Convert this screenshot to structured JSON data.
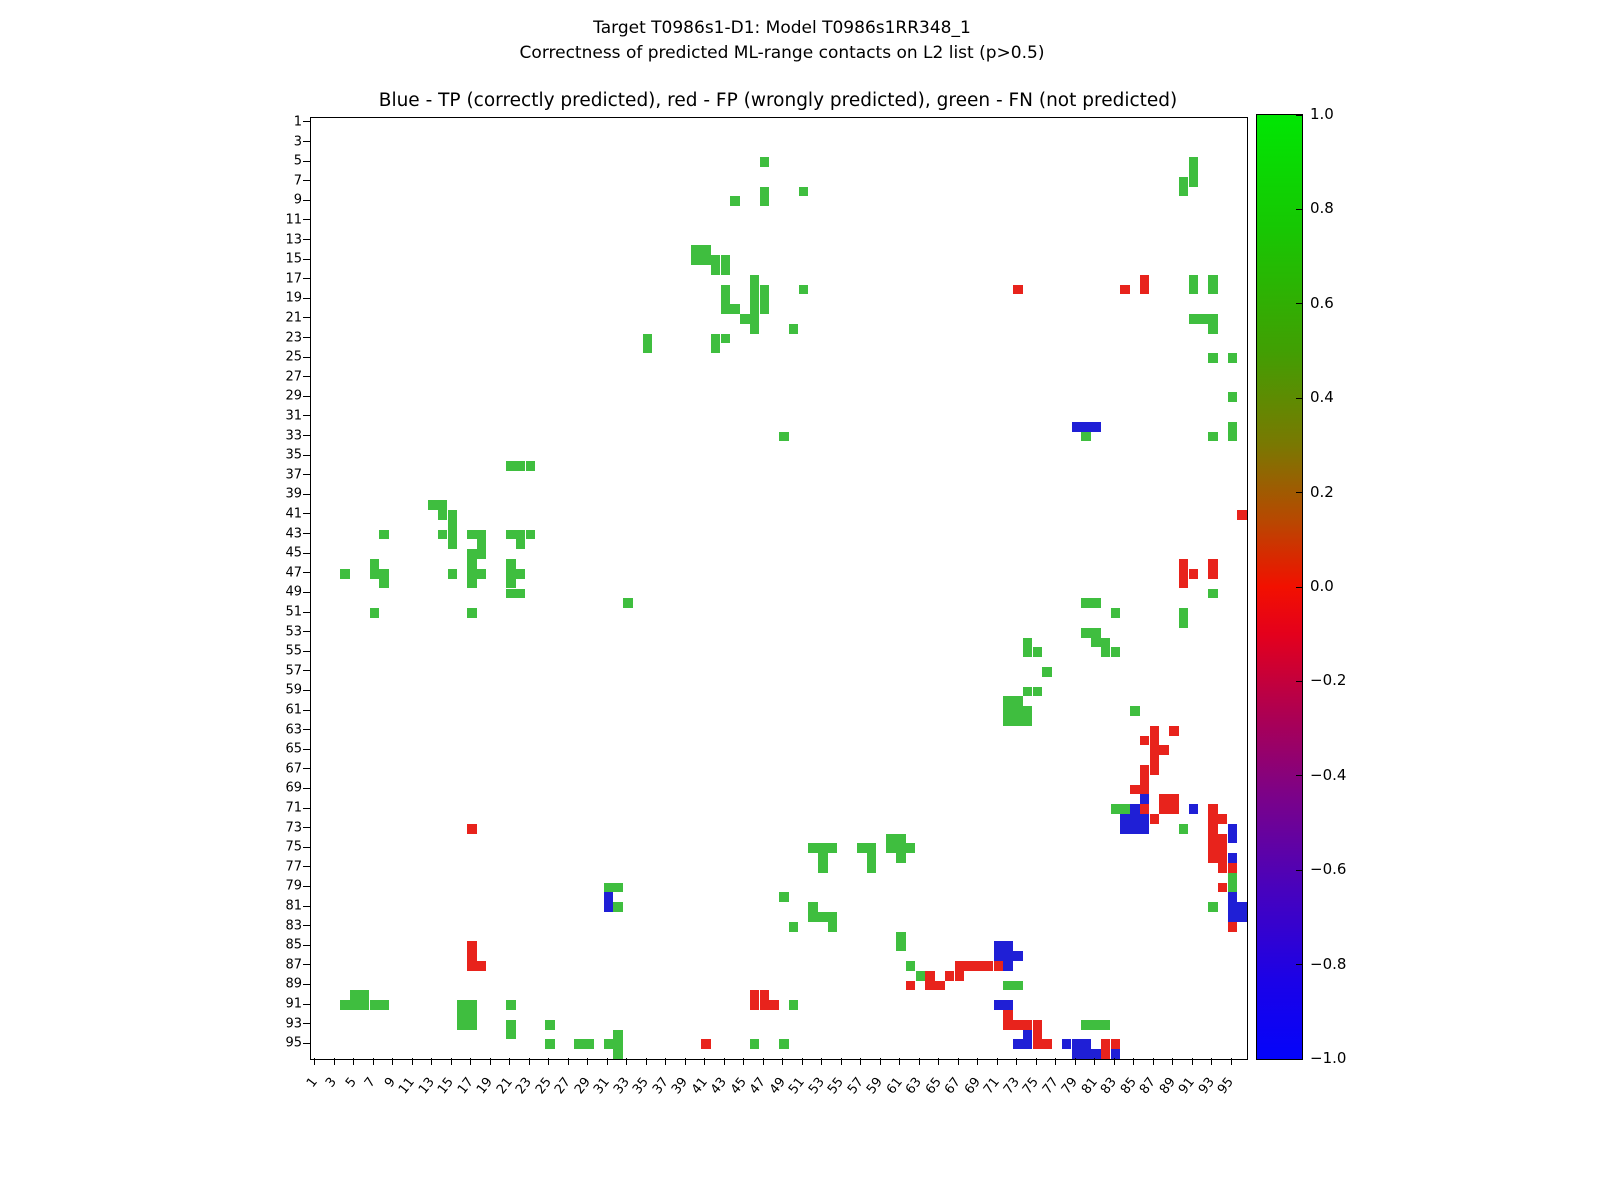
{
  "figure": {
    "suptitle_line1": "Target T0986s1-D1: Model T0986s1RR348_1",
    "suptitle_line2": "Correctness of predicted ML-range contacts on L2 list (p>0.5)",
    "axes_title": "Blue - TP (correctly predicted), red - FP (wrongly predicted), green - FN (not predicted)"
  },
  "chart_data": {
    "type": "heatmap",
    "title": "Correctness of predicted ML-range contacts on L2 list (p>0.5)",
    "subtitle": "Target T0986s1-D1: Model T0986s1RR348_1",
    "grid_size": 96,
    "x_tick_labels": [
      "1",
      "3",
      "5",
      "7",
      "9",
      "11",
      "13",
      "15",
      "17",
      "19",
      "21",
      "23",
      "25",
      "27",
      "29",
      "31",
      "33",
      "35",
      "37",
      "39",
      "41",
      "43",
      "45",
      "47",
      "49",
      "51",
      "53",
      "55",
      "57",
      "59",
      "61",
      "63",
      "65",
      "67",
      "69",
      "71",
      "73",
      "75",
      "77",
      "79",
      "81",
      "83",
      "85",
      "87",
      "89",
      "91",
      "93",
      "95"
    ],
    "y_tick_labels": [
      "1",
      "3",
      "5",
      "7",
      "9",
      "11",
      "13",
      "15",
      "17",
      "19",
      "21",
      "23",
      "25",
      "27",
      "29",
      "31",
      "33",
      "35",
      "37",
      "39",
      "41",
      "43",
      "45",
      "47",
      "49",
      "51",
      "53",
      "55",
      "57",
      "59",
      "61",
      "63",
      "65",
      "67",
      "69",
      "71",
      "73",
      "75",
      "77",
      "79",
      "81",
      "83",
      "85",
      "87",
      "89",
      "91",
      "93",
      "95"
    ],
    "legend": {
      "TP": "correctly predicted (blue)",
      "FP": "wrongly predicted (red)",
      "FN": "not predicted (green)"
    },
    "colors": {
      "TP": "#1f1fd6",
      "FP": "#e8231c",
      "FN": "#3fbe3f"
    },
    "colorbar": {
      "tick_labels": [
        "1.0",
        "0.8",
        "0.6",
        "0.4",
        "0.2",
        "0.0",
        "−0.2",
        "−0.4",
        "−0.6",
        "−0.8",
        "−1.0"
      ],
      "value_range": [
        -1.0,
        1.0
      ],
      "gradient": [
        {
          "pos": 0,
          "color": "#00e603"
        },
        {
          "pos": 12,
          "color": "#17c703"
        },
        {
          "pos": 25,
          "color": "#419f03"
        },
        {
          "pos": 35,
          "color": "#7a7802"
        },
        {
          "pos": 43,
          "color": "#b84801"
        },
        {
          "pos": 50,
          "color": "#f21000"
        },
        {
          "pos": 55,
          "color": "#e4001c"
        },
        {
          "pos": 63,
          "color": "#b0004f"
        },
        {
          "pos": 72,
          "color": "#7c0288"
        },
        {
          "pos": 82,
          "color": "#4802bd"
        },
        {
          "pos": 92,
          "color": "#1a02e8"
        },
        {
          "pos": 100,
          "color": "#0404fa"
        }
      ]
    },
    "cells": [
      [
        5,
        47,
        "FN"
      ],
      [
        5,
        91,
        "FN"
      ],
      [
        6,
        91,
        "FN"
      ],
      [
        7,
        90,
        "FN"
      ],
      [
        7,
        91,
        "FN"
      ],
      [
        8,
        47,
        "FN"
      ],
      [
        8,
        51,
        "FN"
      ],
      [
        8,
        90,
        "FN"
      ],
      [
        9,
        44,
        "FN"
      ],
      [
        9,
        47,
        "FN"
      ],
      [
        14,
        40,
        "FN"
      ],
      [
        14,
        41,
        "FN"
      ],
      [
        15,
        40,
        "FN"
      ],
      [
        15,
        41,
        "FN"
      ],
      [
        15,
        42,
        "FN"
      ],
      [
        15,
        43,
        "FN"
      ],
      [
        16,
        42,
        "FN"
      ],
      [
        16,
        43,
        "FN"
      ],
      [
        17,
        46,
        "FN"
      ],
      [
        17,
        86,
        "FP"
      ],
      [
        17,
        91,
        "FN"
      ],
      [
        17,
        93,
        "FN"
      ],
      [
        18,
        43,
        "FN"
      ],
      [
        18,
        46,
        "FN"
      ],
      [
        18,
        47,
        "FN"
      ],
      [
        18,
        51,
        "FN"
      ],
      [
        18,
        73,
        "FP"
      ],
      [
        18,
        84,
        "FP"
      ],
      [
        18,
        86,
        "FP"
      ],
      [
        18,
        91,
        "FN"
      ],
      [
        18,
        93,
        "FN"
      ],
      [
        19,
        43,
        "FN"
      ],
      [
        19,
        46,
        "FN"
      ],
      [
        19,
        47,
        "FN"
      ],
      [
        20,
        43,
        "FN"
      ],
      [
        20,
        44,
        "FN"
      ],
      [
        20,
        46,
        "FN"
      ],
      [
        20,
        47,
        "FN"
      ],
      [
        21,
        45,
        "FN"
      ],
      [
        21,
        46,
        "FN"
      ],
      [
        21,
        91,
        "FN"
      ],
      [
        21,
        92,
        "FN"
      ],
      [
        21,
        93,
        "FN"
      ],
      [
        22,
        46,
        "FN"
      ],
      [
        22,
        50,
        "FN"
      ],
      [
        22,
        93,
        "FN"
      ],
      [
        23,
        35,
        "FN"
      ],
      [
        23,
        42,
        "FN"
      ],
      [
        23,
        43,
        "FN"
      ],
      [
        24,
        35,
        "FN"
      ],
      [
        24,
        42,
        "FN"
      ],
      [
        25,
        93,
        "FN"
      ],
      [
        25,
        95,
        "FN"
      ],
      [
        29,
        95,
        "FN"
      ],
      [
        32,
        79,
        "TP"
      ],
      [
        32,
        80,
        "TP"
      ],
      [
        32,
        81,
        "TP"
      ],
      [
        32,
        95,
        "FN"
      ],
      [
        33,
        49,
        "FN"
      ],
      [
        33,
        80,
        "FN"
      ],
      [
        33,
        93,
        "FN"
      ],
      [
        33,
        95,
        "FN"
      ],
      [
        36,
        21,
        "FN"
      ],
      [
        36,
        22,
        "FN"
      ],
      [
        36,
        23,
        "FN"
      ],
      [
        40,
        13,
        "FN"
      ],
      [
        40,
        14,
        "FN"
      ],
      [
        41,
        14,
        "FN"
      ],
      [
        41,
        15,
        "FN"
      ],
      [
        41,
        96,
        "FP"
      ],
      [
        42,
        15,
        "FN"
      ],
      [
        43,
        8,
        "FN"
      ],
      [
        43,
        14,
        "FN"
      ],
      [
        43,
        15,
        "FN"
      ],
      [
        43,
        17,
        "FN"
      ],
      [
        43,
        18,
        "FN"
      ],
      [
        43,
        21,
        "FN"
      ],
      [
        43,
        22,
        "FN"
      ],
      [
        43,
        23,
        "FN"
      ],
      [
        44,
        15,
        "FN"
      ],
      [
        44,
        18,
        "FN"
      ],
      [
        44,
        22,
        "FN"
      ],
      [
        45,
        17,
        "FN"
      ],
      [
        45,
        18,
        "FN"
      ],
      [
        46,
        7,
        "FN"
      ],
      [
        46,
        17,
        "FN"
      ],
      [
        46,
        21,
        "FN"
      ],
      [
        46,
        90,
        "FP"
      ],
      [
        46,
        93,
        "FP"
      ],
      [
        47,
        4,
        "FN"
      ],
      [
        47,
        7,
        "FN"
      ],
      [
        47,
        8,
        "FN"
      ],
      [
        47,
        15,
        "FN"
      ],
      [
        47,
        17,
        "FN"
      ],
      [
        47,
        18,
        "FN"
      ],
      [
        47,
        21,
        "FN"
      ],
      [
        47,
        22,
        "FN"
      ],
      [
        47,
        90,
        "FP"
      ],
      [
        47,
        91,
        "FP"
      ],
      [
        47,
        93,
        "FP"
      ],
      [
        48,
        8,
        "FN"
      ],
      [
        48,
        17,
        "FN"
      ],
      [
        48,
        21,
        "FN"
      ],
      [
        48,
        90,
        "FP"
      ],
      [
        49,
        21,
        "FN"
      ],
      [
        49,
        22,
        "FN"
      ],
      [
        49,
        93,
        "FN"
      ],
      [
        50,
        33,
        "FN"
      ],
      [
        50,
        80,
        "FN"
      ],
      [
        50,
        81,
        "FN"
      ],
      [
        51,
        7,
        "FN"
      ],
      [
        51,
        17,
        "FN"
      ],
      [
        51,
        83,
        "FN"
      ],
      [
        51,
        90,
        "FN"
      ],
      [
        52,
        90,
        "FN"
      ],
      [
        53,
        80,
        "FN"
      ],
      [
        53,
        81,
        "FN"
      ],
      [
        54,
        74,
        "FN"
      ],
      [
        54,
        81,
        "FN"
      ],
      [
        54,
        82,
        "FN"
      ],
      [
        55,
        74,
        "FN"
      ],
      [
        55,
        75,
        "FN"
      ],
      [
        55,
        82,
        "FN"
      ],
      [
        55,
        83,
        "FN"
      ],
      [
        57,
        76,
        "FN"
      ],
      [
        59,
        74,
        "FN"
      ],
      [
        59,
        75,
        "FN"
      ],
      [
        60,
        72,
        "FN"
      ],
      [
        60,
        73,
        "FN"
      ],
      [
        61,
        72,
        "FN"
      ],
      [
        61,
        73,
        "FN"
      ],
      [
        61,
        74,
        "FN"
      ],
      [
        61,
        85,
        "FN"
      ],
      [
        62,
        72,
        "FN"
      ],
      [
        62,
        73,
        "FN"
      ],
      [
        62,
        74,
        "FN"
      ],
      [
        63,
        87,
        "FP"
      ],
      [
        63,
        89,
        "FP"
      ],
      [
        64,
        86,
        "FP"
      ],
      [
        64,
        87,
        "FP"
      ],
      [
        65,
        87,
        "FP"
      ],
      [
        65,
        88,
        "FP"
      ],
      [
        66,
        87,
        "FP"
      ],
      [
        67,
        86,
        "FP"
      ],
      [
        67,
        87,
        "FP"
      ],
      [
        68,
        86,
        "FP"
      ],
      [
        69,
        85,
        "FP"
      ],
      [
        69,
        86,
        "FP"
      ],
      [
        70,
        86,
        "TP"
      ],
      [
        70,
        88,
        "FP"
      ],
      [
        70,
        89,
        "FP"
      ],
      [
        71,
        83,
        "FN"
      ],
      [
        71,
        84,
        "FN"
      ],
      [
        71,
        85,
        "TP"
      ],
      [
        71,
        86,
        "FP"
      ],
      [
        71,
        88,
        "FP"
      ],
      [
        71,
        89,
        "FP"
      ],
      [
        71,
        91,
        "TP"
      ],
      [
        71,
        93,
        "FP"
      ],
      [
        72,
        84,
        "TP"
      ],
      [
        72,
        85,
        "TP"
      ],
      [
        72,
        86,
        "TP"
      ],
      [
        72,
        87,
        "FP"
      ],
      [
        72,
        93,
        "FP"
      ],
      [
        72,
        94,
        "FP"
      ],
      [
        73,
        17,
        "FP"
      ],
      [
        73,
        84,
        "TP"
      ],
      [
        73,
        85,
        "TP"
      ],
      [
        73,
        86,
        "TP"
      ],
      [
        73,
        90,
        "FN"
      ],
      [
        73,
        93,
        "FP"
      ],
      [
        73,
        95,
        "TP"
      ],
      [
        74,
        60,
        "FN"
      ],
      [
        74,
        61,
        "FN"
      ],
      [
        74,
        93,
        "FP"
      ],
      [
        74,
        94,
        "FP"
      ],
      [
        74,
        95,
        "TP"
      ],
      [
        75,
        52,
        "FN"
      ],
      [
        75,
        53,
        "FN"
      ],
      [
        75,
        54,
        "FN"
      ],
      [
        75,
        57,
        "FN"
      ],
      [
        75,
        58,
        "FN"
      ],
      [
        75,
        60,
        "FN"
      ],
      [
        75,
        61,
        "FN"
      ],
      [
        75,
        62,
        "FN"
      ],
      [
        75,
        93,
        "FP"
      ],
      [
        75,
        94,
        "FP"
      ],
      [
        76,
        53,
        "FN"
      ],
      [
        76,
        58,
        "FN"
      ],
      [
        76,
        61,
        "FN"
      ],
      [
        76,
        93,
        "FP"
      ],
      [
        76,
        94,
        "FP"
      ],
      [
        76,
        95,
        "TP"
      ],
      [
        77,
        53,
        "FN"
      ],
      [
        77,
        58,
        "FN"
      ],
      [
        77,
        94,
        "FP"
      ],
      [
        77,
        95,
        "FP"
      ],
      [
        78,
        95,
        "FN"
      ],
      [
        79,
        31,
        "FN"
      ],
      [
        79,
        32,
        "FN"
      ],
      [
        79,
        94,
        "FP"
      ],
      [
        79,
        95,
        "FN"
      ],
      [
        80,
        31,
        "TP"
      ],
      [
        80,
        49,
        "FN"
      ],
      [
        80,
        95,
        "TP"
      ],
      [
        81,
        31,
        "TP"
      ],
      [
        81,
        32,
        "FN"
      ],
      [
        81,
        52,
        "FN"
      ],
      [
        81,
        93,
        "FN"
      ],
      [
        81,
        95,
        "TP"
      ],
      [
        81,
        96,
        "TP"
      ],
      [
        82,
        52,
        "FN"
      ],
      [
        82,
        53,
        "FN"
      ],
      [
        82,
        54,
        "FN"
      ],
      [
        82,
        95,
        "TP"
      ],
      [
        82,
        96,
        "TP"
      ],
      [
        83,
        50,
        "FN"
      ],
      [
        83,
        54,
        "FN"
      ],
      [
        83,
        95,
        "FP"
      ],
      [
        84,
        61,
        "FN"
      ],
      [
        85,
        17,
        "FP"
      ],
      [
        85,
        61,
        "FN"
      ],
      [
        85,
        71,
        "TP"
      ],
      [
        85,
        72,
        "TP"
      ],
      [
        86,
        17,
        "FP"
      ],
      [
        86,
        71,
        "TP"
      ],
      [
        86,
        72,
        "TP"
      ],
      [
        86,
        73,
        "TP"
      ],
      [
        87,
        17,
        "FP"
      ],
      [
        87,
        18,
        "FP"
      ],
      [
        87,
        62,
        "FN"
      ],
      [
        87,
        67,
        "FP"
      ],
      [
        87,
        68,
        "FP"
      ],
      [
        87,
        69,
        "FP"
      ],
      [
        87,
        70,
        "FP"
      ],
      [
        87,
        71,
        "FP"
      ],
      [
        87,
        72,
        "TP"
      ],
      [
        88,
        63,
        "FN"
      ],
      [
        88,
        64,
        "FP"
      ],
      [
        88,
        66,
        "FP"
      ],
      [
        88,
        67,
        "FP"
      ],
      [
        89,
        62,
        "FP"
      ],
      [
        89,
        64,
        "FP"
      ],
      [
        89,
        65,
        "FP"
      ],
      [
        89,
        72,
        "FN"
      ],
      [
        89,
        73,
        "FN"
      ],
      [
        90,
        5,
        "FN"
      ],
      [
        90,
        6,
        "FN"
      ],
      [
        90,
        46,
        "FP"
      ],
      [
        90,
        47,
        "FP"
      ],
      [
        91,
        4,
        "FN"
      ],
      [
        91,
        5,
        "FN"
      ],
      [
        91,
        6,
        "FN"
      ],
      [
        91,
        7,
        "FN"
      ],
      [
        91,
        8,
        "FN"
      ],
      [
        91,
        16,
        "FN"
      ],
      [
        91,
        17,
        "FN"
      ],
      [
        91,
        21,
        "FN"
      ],
      [
        91,
        46,
        "FP"
      ],
      [
        91,
        47,
        "FP"
      ],
      [
        91,
        48,
        "FP"
      ],
      [
        91,
        50,
        "FN"
      ],
      [
        91,
        71,
        "TP"
      ],
      [
        91,
        72,
        "TP"
      ],
      [
        92,
        16,
        "FN"
      ],
      [
        92,
        17,
        "FN"
      ],
      [
        92,
        72,
        "FP"
      ],
      [
        93,
        16,
        "FN"
      ],
      [
        93,
        17,
        "FN"
      ],
      [
        93,
        21,
        "FN"
      ],
      [
        93,
        25,
        "FN"
      ],
      [
        93,
        72,
        "FP"
      ],
      [
        93,
        73,
        "FP"
      ],
      [
        93,
        74,
        "FP"
      ],
      [
        93,
        75,
        "FP"
      ],
      [
        93,
        80,
        "FN"
      ],
      [
        93,
        81,
        "FN"
      ],
      [
        93,
        82,
        "FN"
      ],
      [
        94,
        21,
        "FN"
      ],
      [
        94,
        32,
        "FN"
      ],
      [
        94,
        74,
        "TP"
      ],
      [
        94,
        75,
        "FP"
      ],
      [
        95,
        25,
        "FN"
      ],
      [
        95,
        28,
        "FN"
      ],
      [
        95,
        29,
        "FN"
      ],
      [
        95,
        31,
        "FN"
      ],
      [
        95,
        32,
        "FN"
      ],
      [
        95,
        41,
        "FP"
      ],
      [
        95,
        46,
        "FN"
      ],
      [
        95,
        49,
        "FN"
      ],
      [
        95,
        73,
        "TP"
      ],
      [
        95,
        74,
        "TP"
      ],
      [
        95,
        75,
        "FP"
      ],
      [
        95,
        76,
        "FP"
      ],
      [
        95,
        78,
        "TP"
      ],
      [
        95,
        79,
        "TP"
      ],
      [
        95,
        80,
        "TP"
      ],
      [
        95,
        82,
        "FP"
      ],
      [
        95,
        83,
        "FP"
      ],
      [
        96,
        32,
        "FN"
      ],
      [
        96,
        79,
        "TP"
      ],
      [
        96,
        80,
        "TP"
      ],
      [
        96,
        81,
        "TP"
      ],
      [
        96,
        82,
        "FP"
      ],
      [
        96,
        83,
        "TP"
      ]
    ]
  }
}
